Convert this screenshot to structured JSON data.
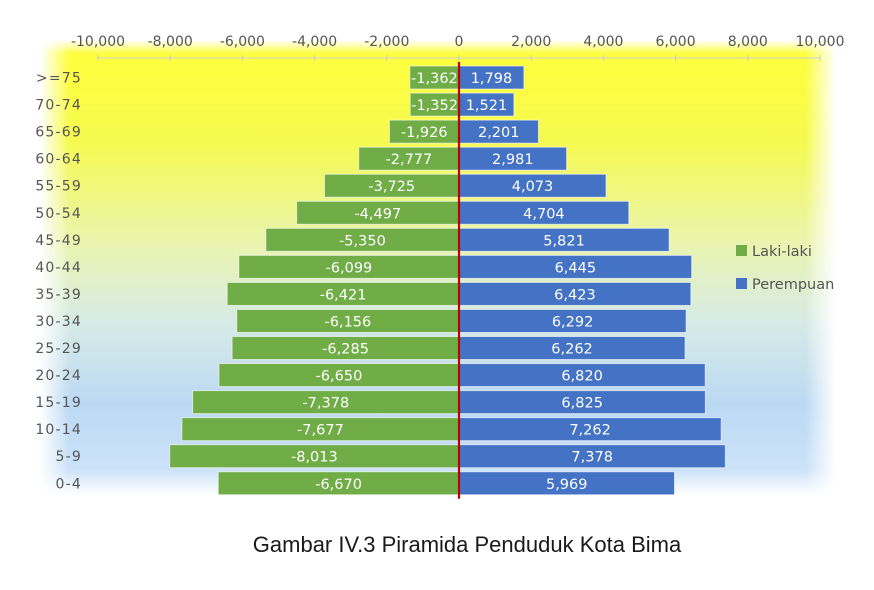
{
  "caption": "Gambar IV.3 Piramida Penduduk Kota Bima",
  "chart_data": {
    "type": "bar",
    "orientation": "horizontal",
    "categories": [
      ">=75",
      "70-74",
      "65-69",
      "60-64",
      "55-59",
      "50-54",
      "45-49",
      "40-44",
      "35-39",
      "30-34",
      "25-29",
      "20-24",
      "15-19",
      "10-14",
      "5-9",
      "0-4"
    ],
    "series": [
      {
        "name": "Laki-laki",
        "color": "#70ad47",
        "values": [
          -1362,
          -1352,
          -1926,
          -2777,
          -3725,
          -4497,
          -5350,
          -6099,
          -6421,
          -6156,
          -6285,
          -6650,
          -7378,
          -7677,
          -8013,
          -6670
        ],
        "labels": [
          "-1,362",
          "-1,352",
          "-1,926",
          "-2,777",
          "-3,725",
          "-4,497",
          "-5,350",
          "-6,099",
          "-6,421",
          "-6,156",
          "-6,285",
          "-6,650",
          "-7,378",
          "-7,677",
          "-8,013",
          "-6,670"
        ]
      },
      {
        "name": "Perempuan",
        "color": "#4472c4",
        "values": [
          1798,
          1521,
          2201,
          2981,
          4073,
          4704,
          5821,
          6445,
          6423,
          6292,
          6262,
          6820,
          6825,
          7262,
          7378,
          5969
        ],
        "labels": [
          "1,798",
          "1,521",
          "2,201",
          "2,981",
          "4,073",
          "4,704",
          "5,821",
          "6,445",
          "6,423",
          "6,292",
          "6,262",
          "6,820",
          "6,825",
          "7,262",
          "7,378",
          "5,969"
        ]
      }
    ],
    "x_ticks": [
      -10000,
      -8000,
      -6000,
      -4000,
      -2000,
      0,
      2000,
      4000,
      6000,
      8000,
      10000
    ],
    "x_tick_labels": [
      "-10,000",
      "-8,000",
      "-6,000",
      "-4,000",
      "-2,000",
      "0",
      "2,000",
      "4,000",
      "6,000",
      "8,000",
      "10,000"
    ],
    "xlim": [
      -10000,
      10000
    ],
    "x_axis_position": "top",
    "legend_position": "right",
    "background": "vertical gradient yellow to light blue",
    "zero_line_color": "#c00000"
  }
}
